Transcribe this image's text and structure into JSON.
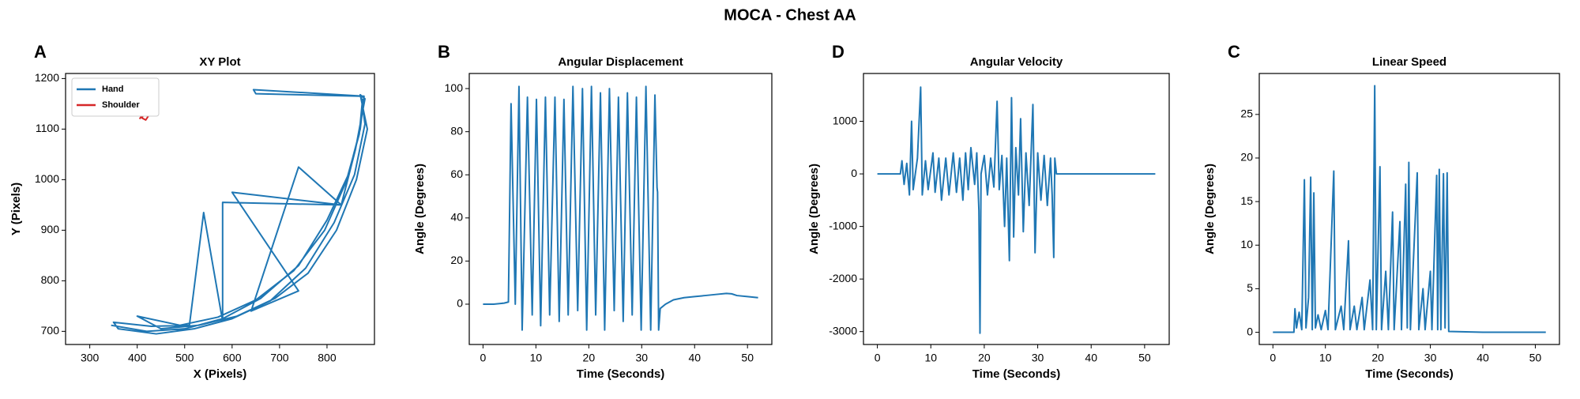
{
  "title": "MOCA - Chest AA",
  "chart_data": [
    {
      "type": "line",
      "panel_label": "A",
      "title": "XY Plot",
      "xlabel": "X (Pixels)",
      "ylabel": "Y (Pixels)",
      "xlim": [
        249,
        900
      ],
      "ylim": [
        674,
        1210
      ],
      "xticks": [
        300,
        400,
        500,
        600,
        700,
        800
      ],
      "yticks": [
        700,
        800,
        900,
        1000,
        1100,
        1200
      ],
      "legend": "upper left",
      "series": [
        {
          "name": "Hand",
          "color": "#1f77b4",
          "x": [
            345,
            420,
            500,
            580,
            660,
            740,
            800,
            845,
            870,
            878,
            645,
            650,
            872,
            880,
            858,
            815,
            755,
            680,
            600,
            520,
            440,
            360,
            350,
            430,
            510,
            540,
            580,
            580,
            830,
            600,
            740,
            640,
            740,
            830,
            860,
            880,
            870,
            885,
            862,
            820,
            760,
            690,
            610,
            530,
            450,
            400,
            490,
            570,
            650,
            730,
            795,
            840,
            868,
            875
          ],
          "values": [
            712,
            700,
            705,
            725,
            765,
            830,
            920,
            1010,
            1100,
            1165,
            1178,
            1170,
            1165,
            1110,
            1010,
            915,
            825,
            760,
            725,
            705,
            695,
            705,
            718,
            710,
            712,
            935,
            720,
            955,
            950,
            975,
            780,
            740,
            1025,
            950,
            1060,
            1160,
            1168,
            1100,
            1000,
            900,
            815,
            765,
            730,
            712,
            705,
            730,
            712,
            728,
            762,
            820,
            900,
            995,
            1090,
            1160
          ]
        },
        {
          "name": "Shoulder",
          "color": "#d62728",
          "x": [
            405,
            412,
            420,
            425,
            418,
            410,
            415,
            422
          ],
          "values": [
            1120,
            1130,
            1135,
            1128,
            1118,
            1122,
            1132,
            1125
          ]
        }
      ]
    },
    {
      "type": "line",
      "panel_label": "B",
      "title": "Angular Displacement",
      "xlabel": "Time (Seconds)",
      "ylabel": "Angle (Degrees)",
      "xlim": [
        -2.6,
        54.6
      ],
      "ylim": [
        -18.7,
        107
      ],
      "xticks": [
        0,
        10,
        20,
        30,
        40,
        50
      ],
      "yticks": [
        0,
        20,
        40,
        60,
        80,
        100
      ],
      "x": [
        0,
        2,
        4,
        4.8,
        5.3,
        6.1,
        6.8,
        7.4,
        8.4,
        9.3,
        10.1,
        10.9,
        11.8,
        12.6,
        13.6,
        14.4,
        15.3,
        16.1,
        17.0,
        17.9,
        18.8,
        19.6,
        20.5,
        21.3,
        22.2,
        23.0,
        23.9,
        24.8,
        25.6,
        26.5,
        27.3,
        28.2,
        29.0,
        29.9,
        30.8,
        31.7,
        32.5,
        32.9,
        33.0,
        33.2,
        33.5,
        34.5,
        36,
        38,
        40,
        42,
        44,
        46,
        47,
        48,
        50,
        52
      ],
      "series": [
        {
          "color": "#1f77b4",
          "values": [
            0,
            0,
            0.5,
            1,
            93,
            0,
            101,
            -12,
            96,
            -5,
            95,
            -10,
            96,
            -5,
            96,
            -8,
            95,
            -5,
            101,
            -3,
            100,
            -12,
            101,
            -5,
            98,
            -12,
            100,
            -3,
            96,
            -8,
            98,
            -5,
            96,
            -12,
            101,
            -12,
            97,
            54,
            52,
            -12,
            -2,
            0,
            2,
            3,
            3.5,
            4,
            4.5,
            5,
            4.8,
            4,
            3.5,
            3
          ]
        }
      ]
    },
    {
      "type": "line",
      "panel_label": "D",
      "title": "Angular Velocity",
      "xlabel": "Time (Seconds)",
      "ylabel": "Angle (Degrees)",
      "xlim": [
        -2.6,
        54.6
      ],
      "ylim": [
        -3245,
        1910
      ],
      "xticks": [
        0,
        10,
        20,
        30,
        40,
        50
      ],
      "yticks": [
        -3000,
        -2000,
        -1000,
        0,
        1000
      ],
      "x": [
        0,
        4.3,
        4.6,
        5.0,
        5.5,
        6.0,
        6.4,
        6.7,
        7.5,
        8.1,
        8.4,
        9,
        9.5,
        10.4,
        10.8,
        11.5,
        12,
        12.8,
        13.4,
        14.2,
        14.8,
        15.4,
        16,
        16.5,
        17,
        17.5,
        18.2,
        18.6,
        19.0,
        19.2,
        19.4,
        20.0,
        20.6,
        21.2,
        21.8,
        22.4,
        22.8,
        23.3,
        23.8,
        24.2,
        24.7,
        25.1,
        25.5,
        25.9,
        26.4,
        26.8,
        27.3,
        27.8,
        28.4,
        29.1,
        29.5,
        30,
        30.6,
        31.2,
        31.8,
        32.4,
        32.7,
        33.0,
        33.2,
        33.5,
        40,
        52
      ],
      "series": [
        {
          "color": "#1f77b4",
          "values": [
            0,
            0,
            250,
            -200,
            200,
            -400,
            1000,
            -300,
            300,
            1650,
            -400,
            250,
            -300,
            400,
            -350,
            300,
            -500,
            300,
            -400,
            400,
            -350,
            300,
            -500,
            400,
            -300,
            500,
            -200,
            400,
            -700,
            -3030,
            0,
            350,
            -400,
            300,
            -250,
            1380,
            -300,
            350,
            -1000,
            300,
            -1650,
            1450,
            -1200,
            500,
            -400,
            1050,
            -1100,
            400,
            -600,
            1320,
            -1500,
            400,
            -500,
            350,
            -600,
            300,
            -400,
            -1590,
            300,
            0,
            0,
            0
          ]
        }
      ]
    },
    {
      "type": "line",
      "panel_label": "C",
      "title": "Linear Speed",
      "xlabel": "Time (Seconds)",
      "ylabel": "Angle (Degrees)",
      "xlim": [
        -2.6,
        54.6
      ],
      "ylim": [
        -1.4,
        29.7
      ],
      "xticks": [
        0,
        10,
        20,
        30,
        40,
        50
      ],
      "yticks": [
        0,
        5,
        10,
        15,
        20,
        25
      ],
      "x": [
        0,
        4,
        4.2,
        4.5,
        5,
        5.5,
        6.0,
        6.3,
        6.8,
        7.2,
        7.5,
        7.8,
        8.1,
        8.6,
        9.2,
        10,
        10.5,
        11.6,
        11.9,
        13,
        13.5,
        14.4,
        14.7,
        15.5,
        16,
        17,
        17.4,
        18.5,
        19.0,
        19.4,
        19.7,
        20.4,
        20.7,
        21.5,
        22,
        22.8,
        23.1,
        24.2,
        24.5,
        25.3,
        25.6,
        25.9,
        26.2,
        27.5,
        27.8,
        28.6,
        29,
        30.0,
        30.3,
        31.2,
        31.4,
        31.7,
        32.0,
        32.5,
        32.8,
        33.2,
        33.5,
        40,
        52
      ],
      "series": [
        {
          "color": "#1f77b4",
          "values": [
            0,
            0,
            2.7,
            0.5,
            2.3,
            0.3,
            17.5,
            0.5,
            4,
            17.8,
            0.3,
            16,
            0.5,
            2,
            0.3,
            2.5,
            0.3,
            18.5,
            0.3,
            3,
            0.3,
            10.5,
            0.3,
            3,
            0.3,
            4,
            0.3,
            6,
            0.3,
            28.3,
            0.3,
            19,
            0.3,
            7,
            0.3,
            13.8,
            0.3,
            12.7,
            0.3,
            17,
            0.5,
            19.5,
            0.3,
            18.3,
            0.3,
            5,
            0.3,
            7,
            0.3,
            18,
            0.3,
            18.7,
            0.3,
            18.2,
            0.5,
            18.3,
            0.1,
            0,
            0
          ]
        }
      ]
    }
  ]
}
